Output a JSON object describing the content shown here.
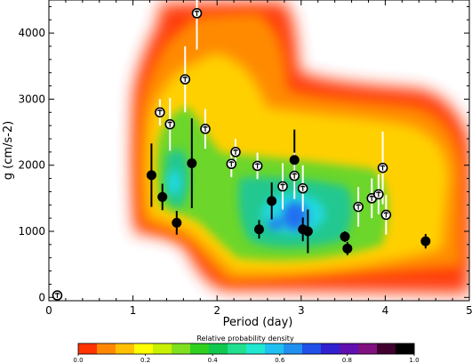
{
  "chart_data": {
    "type": "scatter",
    "title": "",
    "xlabel": "Period (day)",
    "ylabel": "g (cm/s-2)",
    "xlim": [
      0,
      5
    ],
    "ylim": [
      -50,
      4500
    ],
    "x_ticks": [
      "0",
      "1",
      "2",
      "3",
      "4",
      "5"
    ],
    "y_ticks": [
      "0",
      "1000",
      "2000",
      "3000",
      "4000"
    ],
    "colorbar": {
      "title": "Relative probability density",
      "tick_labels": [
        "0.0",
        "0.2",
        "0.4",
        "0.6",
        "0.8",
        "1.0"
      ],
      "colors": [
        "#ff3300",
        "#ff8800",
        "#ffc000",
        "#ffff00",
        "#c8f000",
        "#80e020",
        "#30d020",
        "#10c850",
        "#20e090",
        "#20e8d0",
        "#20c0f0",
        "#2090f0",
        "#2050e8",
        "#3020d0",
        "#6010b0",
        "#801080",
        "#400030",
        "#000000"
      ]
    },
    "background_density": {
      "description_free": true,
      "regions": [
        {
          "x_range": [
            1.05,
            3.55
          ],
          "y_range": [
            1000,
            3300
          ],
          "level": 0.3
        },
        {
          "x_range": [
            1.6,
            3.4
          ],
          "y_range": [
            0,
            3600
          ],
          "level": 0.2
        },
        {
          "x_range": [
            1.7,
            5.0
          ],
          "y_range": [
            200,
            2900
          ],
          "level": 0.3
        }
      ]
    },
    "series": [
      {
        "marker": "filled-black-circle",
        "points": [
          {
            "x": 1.22,
            "y": 1850,
            "err": 480
          },
          {
            "x": 1.35,
            "y": 1520,
            "err": 200
          },
          {
            "x": 1.52,
            "y": 1130,
            "err": 180
          },
          {
            "x": 1.7,
            "y": 2030,
            "err": 680
          },
          {
            "x": 2.5,
            "y": 1030,
            "err": 140
          },
          {
            "x": 2.65,
            "y": 1460,
            "err": 280
          },
          {
            "x": 2.92,
            "y": 2080,
            "err": 460
          },
          {
            "x": 3.02,
            "y": 1030,
            "err": 180
          },
          {
            "x": 3.08,
            "y": 1000,
            "err": 330
          },
          {
            "x": 3.52,
            "y": 920,
            "err": 80
          },
          {
            "x": 3.55,
            "y": 740,
            "err": 100
          },
          {
            "x": 4.48,
            "y": 850,
            "err": 110
          }
        ]
      },
      {
        "marker": "open-white-circle",
        "points": [
          {
            "x": 0.1,
            "y": 30,
            "err": 0
          },
          {
            "x": 1.32,
            "y": 2800,
            "err": 200
          },
          {
            "x": 1.44,
            "y": 2620,
            "err": 400
          },
          {
            "x": 1.62,
            "y": 3300,
            "err": 500
          },
          {
            "x": 1.76,
            "y": 4300,
            "err": 550
          },
          {
            "x": 1.86,
            "y": 2550,
            "err": 300
          },
          {
            "x": 2.17,
            "y": 2020,
            "err": 200
          },
          {
            "x": 2.22,
            "y": 2200,
            "err": 200
          },
          {
            "x": 2.48,
            "y": 1990,
            "err": 200
          },
          {
            "x": 2.78,
            "y": 1680,
            "err": 350
          },
          {
            "x": 2.92,
            "y": 1840,
            "err": 350
          },
          {
            "x": 3.02,
            "y": 1650,
            "err": 350
          },
          {
            "x": 3.68,
            "y": 1370,
            "err": 300
          },
          {
            "x": 3.84,
            "y": 1500,
            "err": 300
          },
          {
            "x": 3.92,
            "y": 1560,
            "err": 300
          },
          {
            "x": 3.97,
            "y": 1960,
            "err": 550
          },
          {
            "x": 4.01,
            "y": 1250,
            "err": 300
          }
        ]
      }
    ]
  }
}
